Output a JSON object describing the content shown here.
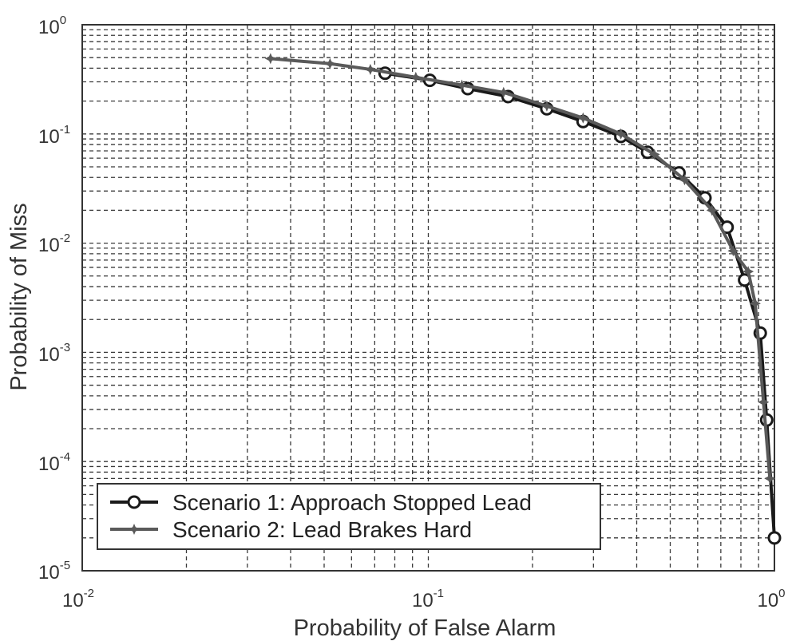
{
  "chart_data": {
    "type": "line",
    "title": "",
    "xlabel": "Probability of False Alarm",
    "ylabel": "Probability of Miss",
    "x_scale": "log",
    "y_scale": "log",
    "xlim": [
      0.01,
      1
    ],
    "ylim": [
      1e-05,
      1
    ],
    "grid": true,
    "grid_style": "dashed",
    "x_ticks": [
      {
        "base": "10",
        "exp": "-2"
      },
      {
        "base": "10",
        "exp": "-1"
      },
      {
        "base": "10",
        "exp": "0"
      }
    ],
    "y_ticks": [
      {
        "base": "10",
        "exp": "-5"
      },
      {
        "base": "10",
        "exp": "-4"
      },
      {
        "base": "10",
        "exp": "-3"
      },
      {
        "base": "10",
        "exp": "-2"
      },
      {
        "base": "10",
        "exp": "-1"
      },
      {
        "base": "10",
        "exp": "0"
      }
    ],
    "legend_position": "bottom-left",
    "series": [
      {
        "name": "Scenario 1: Approach Stopped Lead",
        "marker": "circle",
        "color": "#1a1a1a",
        "points": [
          [
            0.075,
            0.36
          ],
          [
            0.101,
            0.31
          ],
          [
            0.13,
            0.26
          ],
          [
            0.17,
            0.22
          ],
          [
            0.22,
            0.17
          ],
          [
            0.28,
            0.13
          ],
          [
            0.36,
            0.095
          ],
          [
            0.43,
            0.068
          ],
          [
            0.53,
            0.044
          ],
          [
            0.63,
            0.026
          ],
          [
            0.73,
            0.014
          ],
          [
            0.82,
            0.0046
          ],
          [
            0.91,
            0.0015
          ],
          [
            0.95,
            0.00024
          ],
          [
            1.0,
            2e-05
          ]
        ]
      },
      {
        "name": "Scenario 2: Lead Brakes Hard",
        "marker": "star",
        "color": "#5a5a5a",
        "points": [
          [
            0.035,
            0.49
          ],
          [
            0.052,
            0.44
          ],
          [
            0.068,
            0.39
          ],
          [
            0.092,
            0.33
          ],
          [
            0.125,
            0.28
          ],
          [
            0.165,
            0.24
          ],
          [
            0.22,
            0.18
          ],
          [
            0.28,
            0.14
          ],
          [
            0.36,
            0.1
          ],
          [
            0.45,
            0.065
          ],
          [
            0.55,
            0.038
          ],
          [
            0.66,
            0.02
          ],
          [
            0.76,
            0.0085
          ],
          [
            0.84,
            0.0055
          ],
          [
            0.88,
            0.0028
          ],
          [
            0.93,
            0.00035
          ],
          [
            0.97,
            7e-05
          ]
        ]
      }
    ]
  }
}
